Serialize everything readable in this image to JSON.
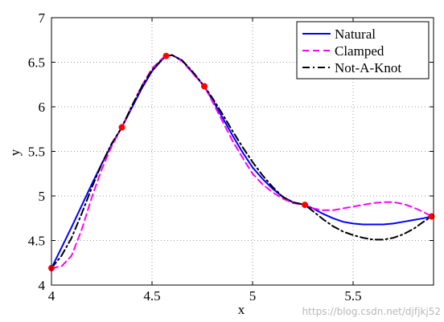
{
  "chart_data": {
    "type": "line",
    "xlabel": "x",
    "ylabel": "y",
    "xlim": [
      4,
      5.9
    ],
    "ylim": [
      4,
      7
    ],
    "xticks": [
      4,
      4.5,
      5,
      5.5
    ],
    "xtick_labels": [
      "4",
      "4.5",
      "5",
      "5.5"
    ],
    "yticks": [
      4,
      4.5,
      5,
      5.5,
      6,
      6.5,
      7
    ],
    "ytick_labels": [
      "4",
      "4.5",
      "5",
      "5.5",
      "6",
      "6.5",
      "7"
    ],
    "grid": true,
    "legend_position": "top-right",
    "knots": {
      "x": [
        4.0,
        4.35,
        4.57,
        4.76,
        5.26,
        5.89
      ],
      "y": [
        4.19,
        5.77,
        6.57,
        6.23,
        4.9,
        4.77
      ],
      "color": "#ff0000"
    },
    "series": [
      {
        "name": "Natural",
        "color": "#0000ff",
        "dash": "solid",
        "x": [
          4.0,
          4.05,
          4.1,
          4.15,
          4.2,
          4.25,
          4.3,
          4.35,
          4.4,
          4.45,
          4.5,
          4.55,
          4.57,
          4.6,
          4.65,
          4.7,
          4.76,
          4.8,
          4.85,
          4.9,
          4.95,
          5.0,
          5.05,
          5.1,
          5.15,
          5.2,
          5.26,
          5.3,
          5.35,
          5.4,
          5.45,
          5.5,
          5.55,
          5.6,
          5.65,
          5.7,
          5.75,
          5.8,
          5.85,
          5.89
        ],
        "y": [
          4.19,
          4.42,
          4.65,
          4.89,
          5.13,
          5.36,
          5.58,
          5.77,
          5.99,
          6.21,
          6.4,
          6.53,
          6.57,
          6.58,
          6.52,
          6.39,
          6.23,
          6.08,
          5.88,
          5.68,
          5.49,
          5.32,
          5.19,
          5.08,
          4.99,
          4.93,
          4.9,
          4.86,
          4.8,
          4.75,
          4.71,
          4.69,
          4.68,
          4.68,
          4.68,
          4.69,
          4.71,
          4.73,
          4.75,
          4.77
        ]
      },
      {
        "name": "Clamped",
        "color": "#ff00ff",
        "dash": "dashed",
        "x": [
          4.0,
          4.05,
          4.1,
          4.15,
          4.2,
          4.25,
          4.3,
          4.35,
          4.4,
          4.45,
          4.5,
          4.55,
          4.57,
          4.6,
          4.65,
          4.7,
          4.76,
          4.8,
          4.85,
          4.9,
          4.95,
          5.0,
          5.05,
          5.1,
          5.15,
          5.2,
          5.26,
          5.3,
          5.35,
          5.4,
          5.45,
          5.5,
          5.55,
          5.6,
          5.65,
          5.7,
          5.75,
          5.8,
          5.85,
          5.89
        ],
        "y": [
          4.19,
          4.21,
          4.33,
          4.62,
          4.98,
          5.3,
          5.56,
          5.77,
          6.01,
          6.24,
          6.43,
          6.54,
          6.57,
          6.58,
          6.51,
          6.38,
          6.23,
          6.06,
          5.84,
          5.62,
          5.43,
          5.25,
          5.13,
          5.04,
          4.97,
          4.92,
          4.9,
          4.86,
          4.84,
          4.84,
          4.86,
          4.88,
          4.9,
          4.92,
          4.93,
          4.93,
          4.91,
          4.87,
          4.82,
          4.77
        ]
      },
      {
        "name": "Not-A-Knot",
        "color": "#000000",
        "dash": "dashdot",
        "x": [
          4.0,
          4.05,
          4.1,
          4.15,
          4.2,
          4.25,
          4.3,
          4.35,
          4.4,
          4.45,
          4.5,
          4.55,
          4.57,
          4.6,
          4.65,
          4.7,
          4.76,
          4.8,
          4.85,
          4.9,
          4.95,
          5.0,
          5.05,
          5.1,
          5.15,
          5.2,
          5.26,
          5.3,
          5.35,
          5.4,
          5.45,
          5.5,
          5.55,
          5.6,
          5.65,
          5.7,
          5.75,
          5.8,
          5.85,
          5.89
        ],
        "y": [
          4.19,
          4.33,
          4.53,
          4.8,
          5.09,
          5.36,
          5.59,
          5.77,
          6.01,
          6.23,
          6.41,
          6.53,
          6.57,
          6.58,
          6.52,
          6.4,
          6.23,
          6.1,
          5.92,
          5.73,
          5.55,
          5.38,
          5.23,
          5.1,
          4.99,
          4.93,
          4.9,
          4.83,
          4.74,
          4.66,
          4.6,
          4.56,
          4.53,
          4.51,
          4.51,
          4.53,
          4.57,
          4.63,
          4.71,
          4.77
        ]
      }
    ]
  },
  "watermark": "https://blog.csdn.net/djfjkj52"
}
